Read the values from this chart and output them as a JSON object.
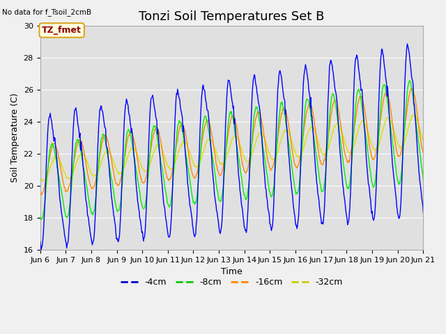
{
  "title": "Tonzi Soil Temperatures Set B",
  "subtitle": "No data for f_Tsoil_2cmB",
  "annotation": "TZ_fmet",
  "xlabel": "Time",
  "ylabel": "Soil Temperature (C)",
  "ylim": [
    16,
    30
  ],
  "colors": {
    "-4cm": "#0000ff",
    "-8cm": "#00ee00",
    "-16cm": "#ff8800",
    "-32cm": "#dddd00"
  },
  "legend_colors": [
    "#0000cc",
    "#00cc00",
    "#ff8800",
    "#cccc00"
  ],
  "legend_labels": [
    "-4cm",
    "-8cm",
    "-16cm",
    "-32cm"
  ],
  "x_tick_labels": [
    "Jun 6",
    "Jun 7",
    "Jun 8",
    "Jun 9",
    "Jun 10",
    "Jun 11",
    "Jun 12",
    "Jun 13",
    "Jun 14",
    "Jun 15",
    "Jun 16",
    "Jun 17",
    "Jun 18",
    "Jun 19",
    "Jun 20",
    "Jun 21"
  ],
  "background_color": "#f0f0f0",
  "plot_bg_color": "#e0e0e0",
  "title_fontsize": 13,
  "axis_fontsize": 9,
  "tick_fontsize": 8
}
